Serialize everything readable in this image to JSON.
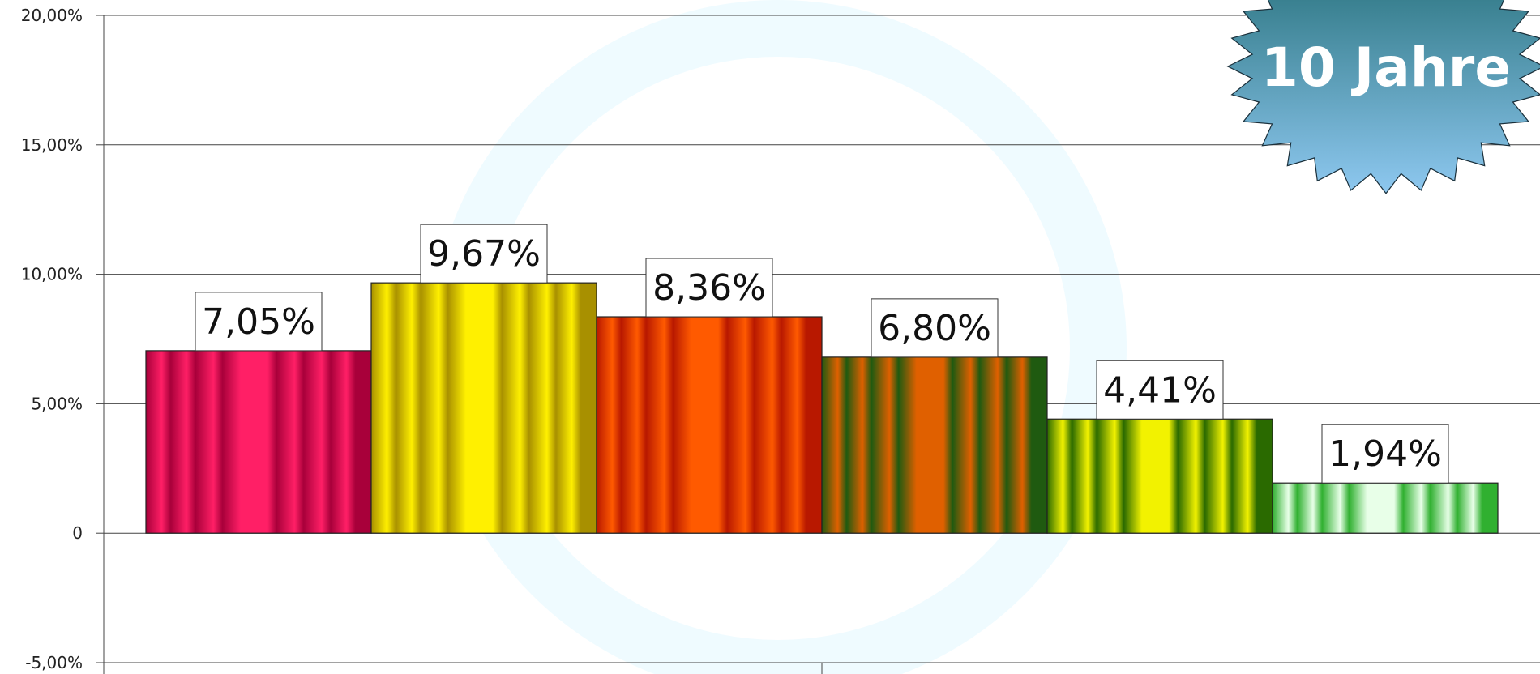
{
  "chart_data": {
    "type": "bar",
    "categories": [
      "",
      "",
      "",
      "",
      "",
      ""
    ],
    "values": [
      7.05,
      9.67,
      8.36,
      6.8,
      4.41,
      1.94
    ],
    "data_labels": [
      "7,05%",
      "9,67%",
      "8,36%",
      "6,80%",
      "4,41%",
      "1,94%"
    ],
    "yticks": [
      {
        "value": 20,
        "label": "20,00%"
      },
      {
        "value": 15,
        "label": "15,00%"
      },
      {
        "value": 10,
        "label": "10,00%"
      },
      {
        "value": 5,
        "label": "5,00%"
      },
      {
        "value": 0,
        "label": "0"
      },
      {
        "value": -5,
        "label": "-5,00%"
      }
    ],
    "ylim": [
      -5,
      20
    ],
    "grid": true,
    "title": "",
    "xlabel": "",
    "ylabel": "",
    "bar_colors": [
      {
        "dark": "#a8003a",
        "light": "#ff1f66"
      },
      {
        "dark": "#a89000",
        "light": "#fff000"
      },
      {
        "dark": "#b81800",
        "light": "#ff5a00"
      },
      {
        "dark": "#1f5a10",
        "light": "#e06000"
      },
      {
        "dark": "#2a6a00",
        "light": "#f2f200"
      },
      {
        "dark": "#30b030",
        "light": "#e8ffe8"
      }
    ]
  },
  "badge": {
    "text": "10 Jahre",
    "colors": {
      "top": "#1f6a72",
      "bottom": "#8ec8f0"
    }
  }
}
